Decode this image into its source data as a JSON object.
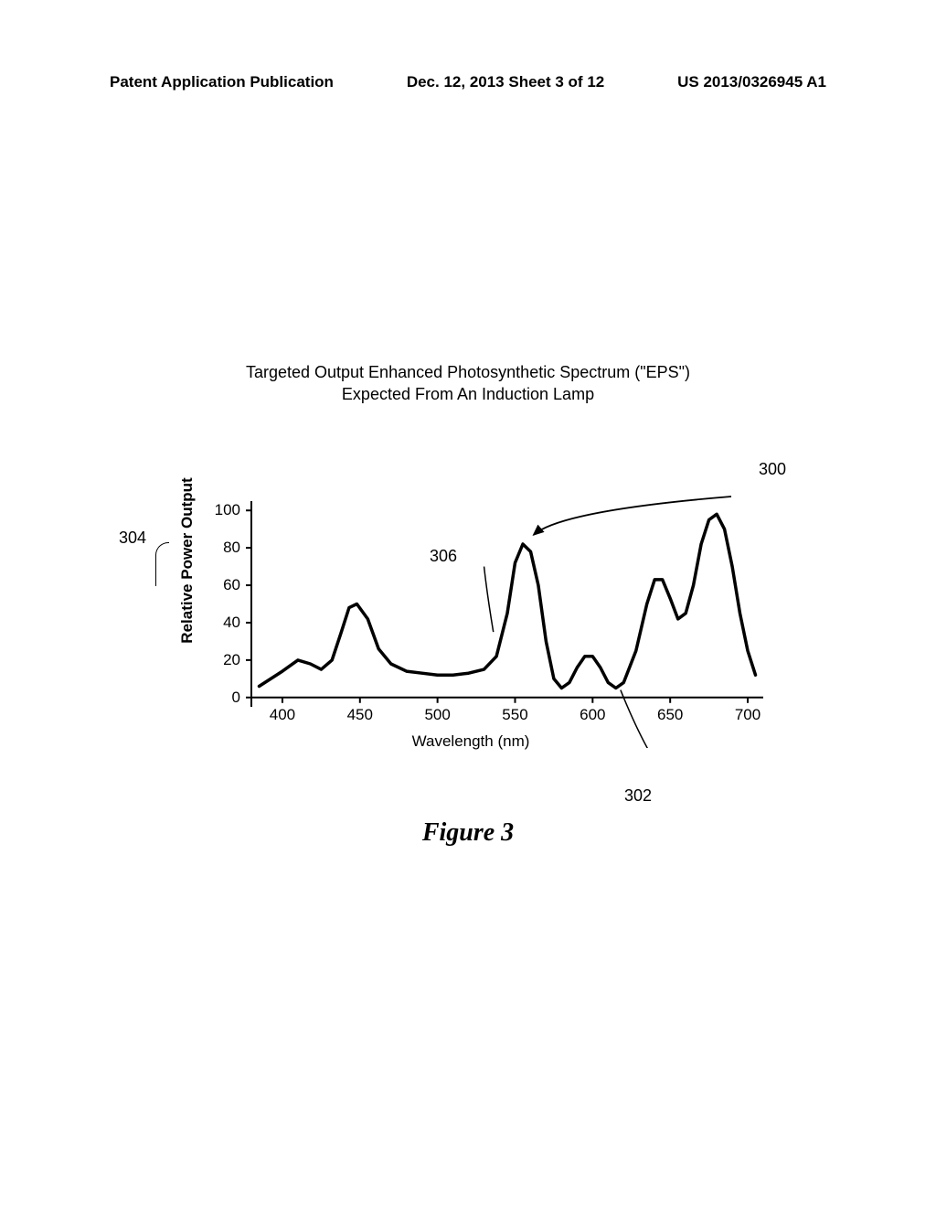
{
  "header": {
    "left": "Patent Application Publication",
    "center": "Dec. 12, 2013  Sheet 3 of 12",
    "right": "US 2013/0326945 A1"
  },
  "chart": {
    "title_line1": "Targeted Output Enhanced Photosynthetic Spectrum (\"EPS\")",
    "title_line2": "Expected From An Induction Lamp",
    "type": "line",
    "ylabel": "Relative Power Output",
    "xlabel": "Wavelength (nm)",
    "xlim": [
      380,
      710
    ],
    "ylim": [
      -5,
      105
    ],
    "yticks": [
      0,
      20,
      40,
      60,
      80,
      100
    ],
    "xticks": [
      400,
      450,
      500,
      550,
      600,
      650,
      700
    ],
    "stroke_color": "#000000",
    "stroke_width": 3.5,
    "axis_stroke_width": 2,
    "background_color": "#ffffff",
    "text_color": "#000000",
    "tick_fontsize": 17,
    "label_fontsize": 17,
    "callouts": {
      "c300": "300",
      "c302": "302",
      "c304": "304",
      "c306": "306"
    },
    "series": [
      {
        "x": 385,
        "y": 6
      },
      {
        "x": 400,
        "y": 14
      },
      {
        "x": 410,
        "y": 20
      },
      {
        "x": 418,
        "y": 18
      },
      {
        "x": 425,
        "y": 15
      },
      {
        "x": 432,
        "y": 20
      },
      {
        "x": 438,
        "y": 35
      },
      {
        "x": 443,
        "y": 48
      },
      {
        "x": 448,
        "y": 50
      },
      {
        "x": 455,
        "y": 42
      },
      {
        "x": 462,
        "y": 26
      },
      {
        "x": 470,
        "y": 18
      },
      {
        "x": 480,
        "y": 14
      },
      {
        "x": 490,
        "y": 13
      },
      {
        "x": 500,
        "y": 12
      },
      {
        "x": 510,
        "y": 12
      },
      {
        "x": 520,
        "y": 13
      },
      {
        "x": 530,
        "y": 15
      },
      {
        "x": 538,
        "y": 22
      },
      {
        "x": 545,
        "y": 45
      },
      {
        "x": 550,
        "y": 72
      },
      {
        "x": 555,
        "y": 82
      },
      {
        "x": 560,
        "y": 78
      },
      {
        "x": 565,
        "y": 60
      },
      {
        "x": 570,
        "y": 30
      },
      {
        "x": 575,
        "y": 10
      },
      {
        "x": 580,
        "y": 5
      },
      {
        "x": 585,
        "y": 8
      },
      {
        "x": 590,
        "y": 16
      },
      {
        "x": 595,
        "y": 22
      },
      {
        "x": 600,
        "y": 22
      },
      {
        "x": 605,
        "y": 16
      },
      {
        "x": 610,
        "y": 8
      },
      {
        "x": 615,
        "y": 5
      },
      {
        "x": 620,
        "y": 8
      },
      {
        "x": 628,
        "y": 25
      },
      {
        "x": 635,
        "y": 50
      },
      {
        "x": 640,
        "y": 63
      },
      {
        "x": 645,
        "y": 63
      },
      {
        "x": 650,
        "y": 53
      },
      {
        "x": 655,
        "y": 42
      },
      {
        "x": 660,
        "y": 45
      },
      {
        "x": 665,
        "y": 60
      },
      {
        "x": 670,
        "y": 82
      },
      {
        "x": 675,
        "y": 95
      },
      {
        "x": 680,
        "y": 98
      },
      {
        "x": 685,
        "y": 90
      },
      {
        "x": 690,
        "y": 70
      },
      {
        "x": 695,
        "y": 45
      },
      {
        "x": 700,
        "y": 25
      },
      {
        "x": 705,
        "y": 12
      }
    ]
  },
  "figure_caption": "Figure 3"
}
